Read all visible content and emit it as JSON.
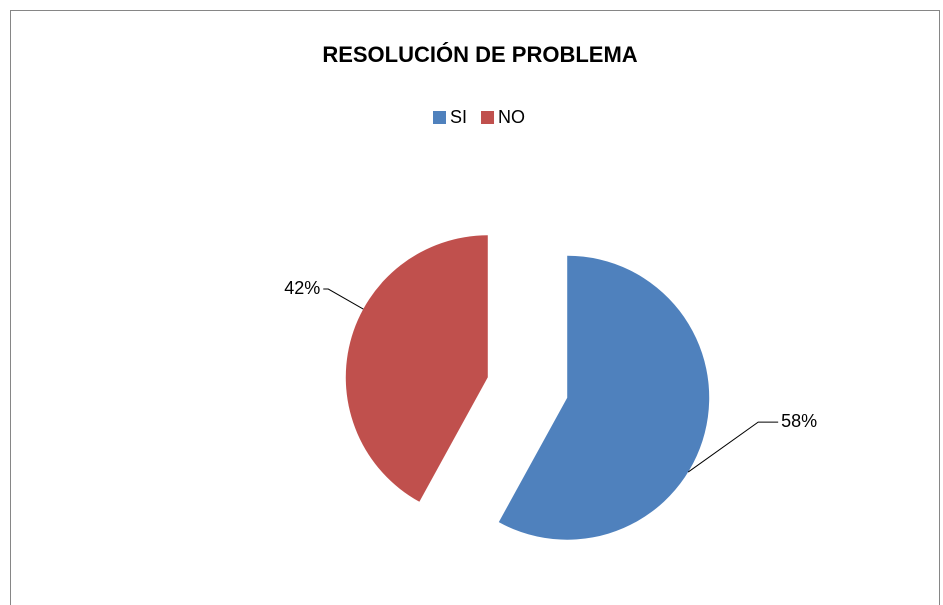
{
  "chart_data": {
    "type": "pie",
    "title": "RESOLUCIÓN DE PROBLEMA",
    "categories": [
      "SI",
      "NO"
    ],
    "values": [
      58,
      42
    ],
    "value_labels": [
      "58%",
      "42%"
    ],
    "colors": [
      "#4f81bd",
      "#c0504d"
    ],
    "legend": "top",
    "exploded": true
  }
}
